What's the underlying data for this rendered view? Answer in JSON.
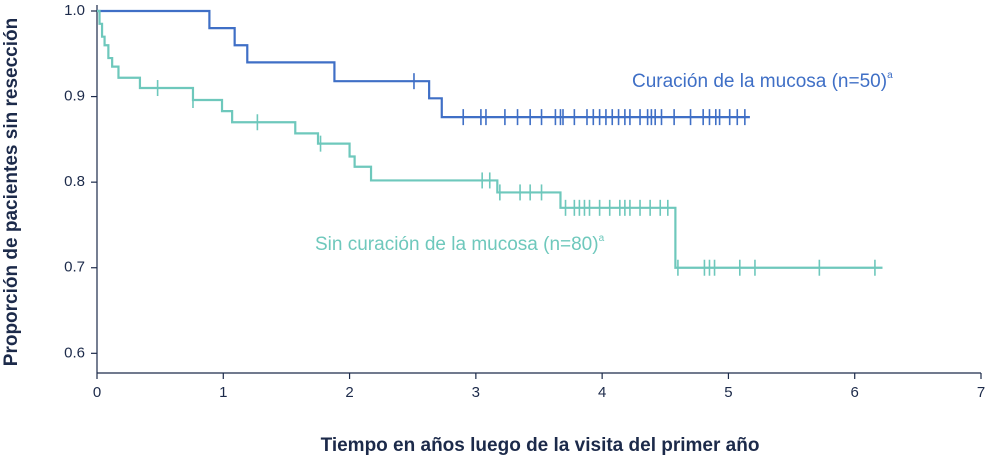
{
  "chart_data": {
    "type": "step",
    "x_label": "Tiempo en años luego de la visita del primer año",
    "y_label": "Proporción de pacientes sin resección",
    "xlim": [
      0,
      7
    ],
    "xticks": [
      0,
      1,
      2,
      3,
      4,
      5,
      6,
      7
    ],
    "ylim": [
      0.577,
      1.0
    ],
    "yticks": [
      {
        "value": 1,
        "label": "1.0"
      },
      0.9,
      0.8,
      0.7,
      0.6
    ],
    "series": [
      {
        "name": "Curación de la mucosa (n=50)",
        "name_superscript": "a",
        "color": "#3f6fc6",
        "x": [
          0,
          0.89,
          1.09,
          1.19,
          1.88,
          2.63,
          2.73,
          5.17
        ],
        "values": [
          1.0,
          0.98,
          0.96,
          0.94,
          0.918,
          0.898,
          0.876,
          0.876
        ],
        "censored": [
          2.51,
          2.9,
          3.04,
          3.08,
          3.23,
          3.33,
          3.43,
          3.52,
          3.63,
          3.67,
          3.69,
          3.78,
          3.88,
          3.93,
          3.98,
          4.03,
          4.08,
          4.13,
          4.18,
          4.22,
          4.3,
          4.36,
          4.39,
          4.42,
          4.47,
          4.57,
          4.7,
          4.8,
          4.85,
          4.9,
          4.93,
          5.01,
          5.07,
          5.13
        ]
      },
      {
        "name": "Sin curación de la mucosa (n=80)",
        "name_superscript": "a",
        "color": "#6ec8bc",
        "x": [
          0,
          0.02,
          0.04,
          0.06,
          0.09,
          0.12,
          0.17,
          0.34,
          0.76,
          0.99,
          1.07,
          1.57,
          1.75,
          2.0,
          2.04,
          2.17,
          3.17,
          3.67,
          4.58,
          6.22
        ],
        "values": [
          1.0,
          0.985,
          0.97,
          0.96,
          0.945,
          0.935,
          0.922,
          0.91,
          0.896,
          0.883,
          0.87,
          0.857,
          0.845,
          0.83,
          0.818,
          0.802,
          0.788,
          0.77,
          0.7,
          0.7
        ],
        "censored": [
          0.48,
          0.76,
          1.27,
          1.77,
          3.05,
          3.11,
          3.19,
          3.35,
          3.43,
          3.52,
          3.71,
          3.78,
          3.82,
          3.86,
          3.9,
          3.98,
          4.06,
          4.14,
          4.18,
          4.22,
          4.3,
          4.38,
          4.46,
          4.52,
          4.6,
          4.81,
          4.85,
          4.89,
          5.09,
          5.21,
          5.72,
          6.16
        ]
      }
    ]
  }
}
